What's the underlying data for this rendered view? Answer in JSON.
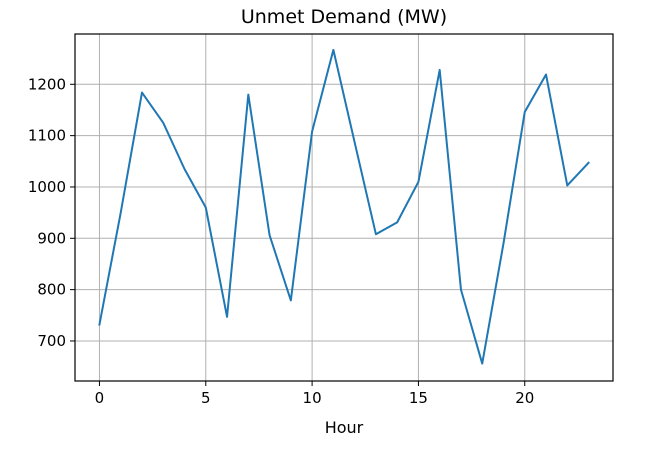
{
  "chart_data": {
    "type": "line",
    "title": "Unmet Demand (MW)",
    "xlabel": "Hour",
    "ylabel": "",
    "xlim": [
      -1.15,
      24.15
    ],
    "ylim": [
      622,
      1298
    ],
    "xticks": [
      0,
      5,
      10,
      15,
      20
    ],
    "yticks": [
      700,
      800,
      900,
      1000,
      1100,
      1200
    ],
    "grid": true,
    "legend": "none",
    "color": "#1f77b4",
    "x": [
      0,
      1,
      2,
      3,
      4,
      5,
      6,
      7,
      8,
      9,
      10,
      11,
      12,
      13,
      14,
      15,
      16,
      17,
      18,
      19,
      20,
      21,
      22,
      23
    ],
    "values": [
      732,
      950,
      1184,
      1125,
      1035,
      960,
      747,
      1180,
      906,
      779,
      1108,
      1267,
      1087,
      908,
      931,
      1010,
      1228,
      800,
      656,
      890,
      1146,
      1219,
      1003,
      1047
    ]
  }
}
